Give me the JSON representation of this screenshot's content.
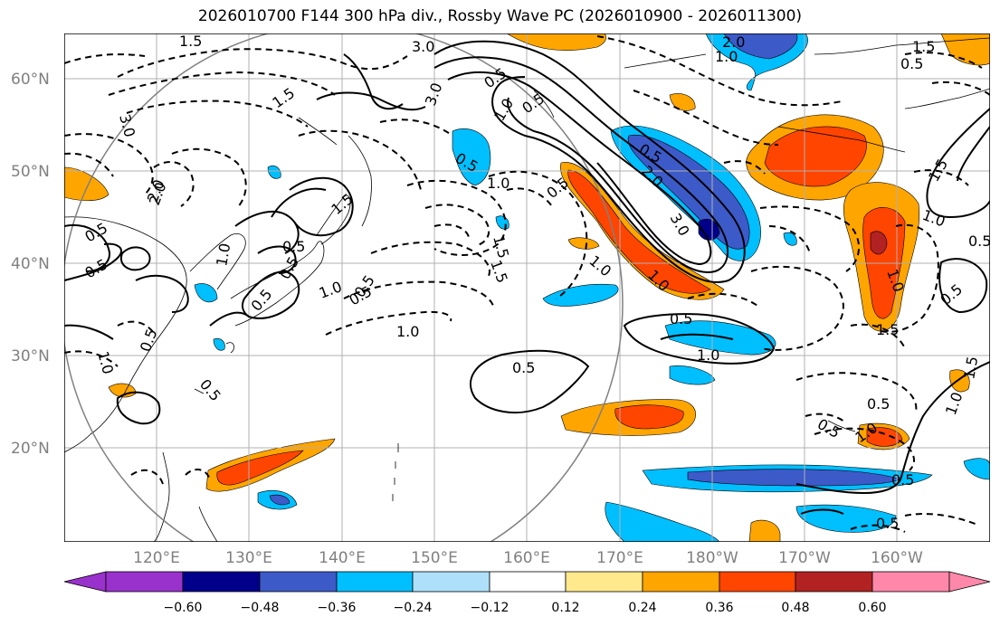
{
  "title": "2026010700 F144 300 hPa div., Rossby Wave PC (2026010900 - 2026011300)",
  "lat_labels": [
    "60°N",
    "50°N",
    "40°N",
    "30°N",
    "20°N"
  ],
  "lon_labels": [
    "120°E",
    "130°E",
    "140°E",
    "150°E",
    "160°E",
    "170°E",
    "180°W",
    "170°W",
    "160°W"
  ],
  "contour_labels": [
    "3.0",
    "1.5",
    "1.5",
    "1.5",
    "1.5",
    "3.0",
    "2.0",
    "2.0",
    "1.5",
    "0.5",
    "1.0",
    "0.5",
    "0.5",
    "0.5",
    "1.0",
    "1.0",
    "0.5",
    "1.0",
    "1.5",
    "0.5",
    "3.0",
    "2.0",
    "0.5",
    "1.0",
    "0.5",
    "2.0",
    "3.0",
    "1.0",
    "1.0",
    "0.5",
    "1.0",
    "1.5",
    "0.5",
    "1.0",
    "0.5",
    "1.5",
    "0.5",
    "0.5",
    "1.0",
    "0.5",
    "0.5",
    "1.0",
    "1.0",
    "0.5",
    "0.5",
    "0.5",
    "1.0",
    "0.5",
    "1.5",
    "0.5",
    "1.0",
    "0.5",
    "0.5",
    "0.5"
  ],
  "colorbar": {
    "colors": [
      "#9932CC",
      "#00008B",
      "#3C5AC8",
      "#00BFFF",
      "#AEE0FA",
      "#FFFFFF",
      "#FFE98C",
      "#FFA500",
      "#FF4500",
      "#B22222",
      "#FF88AA"
    ],
    "tick_labels": [
      "−0.60",
      "−0.48",
      "−0.36",
      "−0.24",
      "−0.12",
      "0.12",
      "0.24",
      "0.36",
      "0.48",
      "0.60"
    ]
  }
}
